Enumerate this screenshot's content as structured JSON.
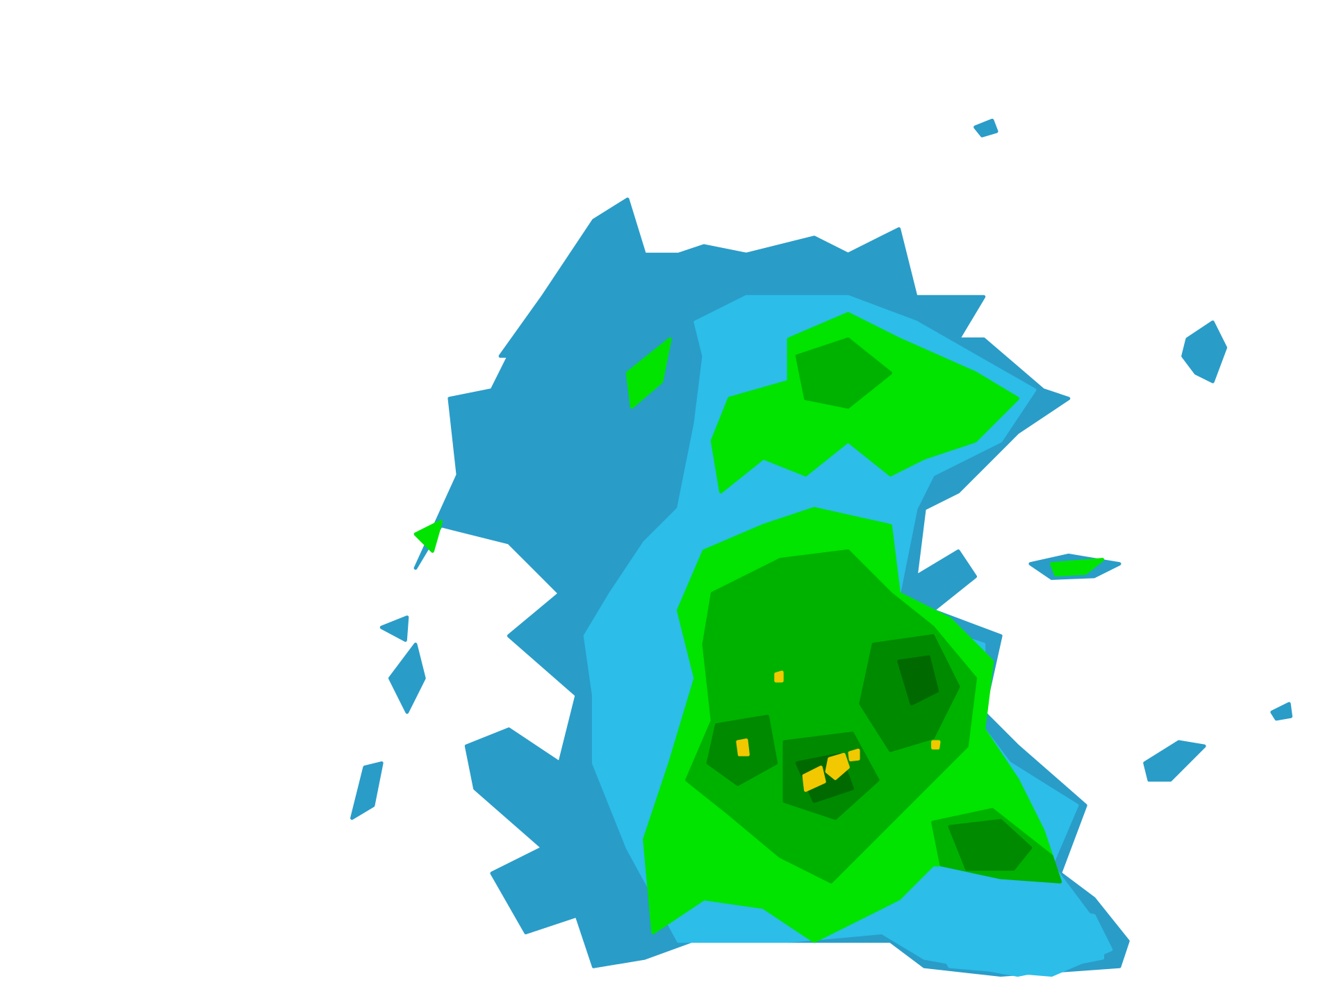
{
  "map": {
    "type": "radar-reflectivity-overlay",
    "background": "#ffffff",
    "colors": {
      "level1_dark_blue": "#2a9cc8",
      "level2_light_blue": "#2cbde9",
      "level3_bright_green": "#00e400",
      "level4_green": "#00b200",
      "level5_dark_green": "#008a00",
      "level6_darker_green": "#006a00",
      "level7_yellow": "#f2c800"
    }
  }
}
